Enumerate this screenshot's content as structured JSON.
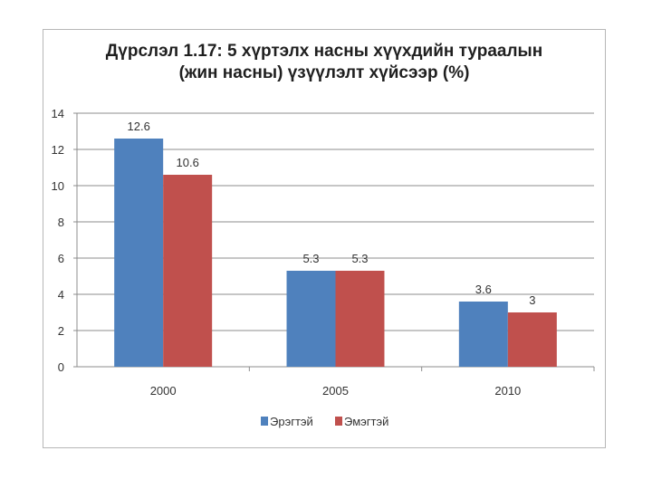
{
  "chart_data": {
    "type": "bar",
    "title_line1": "Дүрслэл 1.17: 5 хүртэлх насны хүүхдийн тураалын",
    "title_line2": "(жин насны) үзүүлэлт хүйсээр (%)",
    "categories": [
      "2000",
      "2005",
      "2010"
    ],
    "series": [
      {
        "name": "Эрэгтэй",
        "color": "#4f81bd",
        "values": [
          12.6,
          5.3,
          3.6
        ],
        "labels": [
          "12.6",
          "5.3",
          "3.6"
        ]
      },
      {
        "name": "Эмэгтэй",
        "color": "#c0504d",
        "values": [
          10.6,
          5.3,
          3
        ],
        "labels": [
          "10.6",
          "5.3",
          "3"
        ]
      }
    ],
    "ylim": [
      0,
      14
    ],
    "yticks": [
      "0",
      "2",
      "4",
      "6",
      "8",
      "10",
      "12",
      "14"
    ],
    "grid": true,
    "legend_position": "bottom"
  }
}
